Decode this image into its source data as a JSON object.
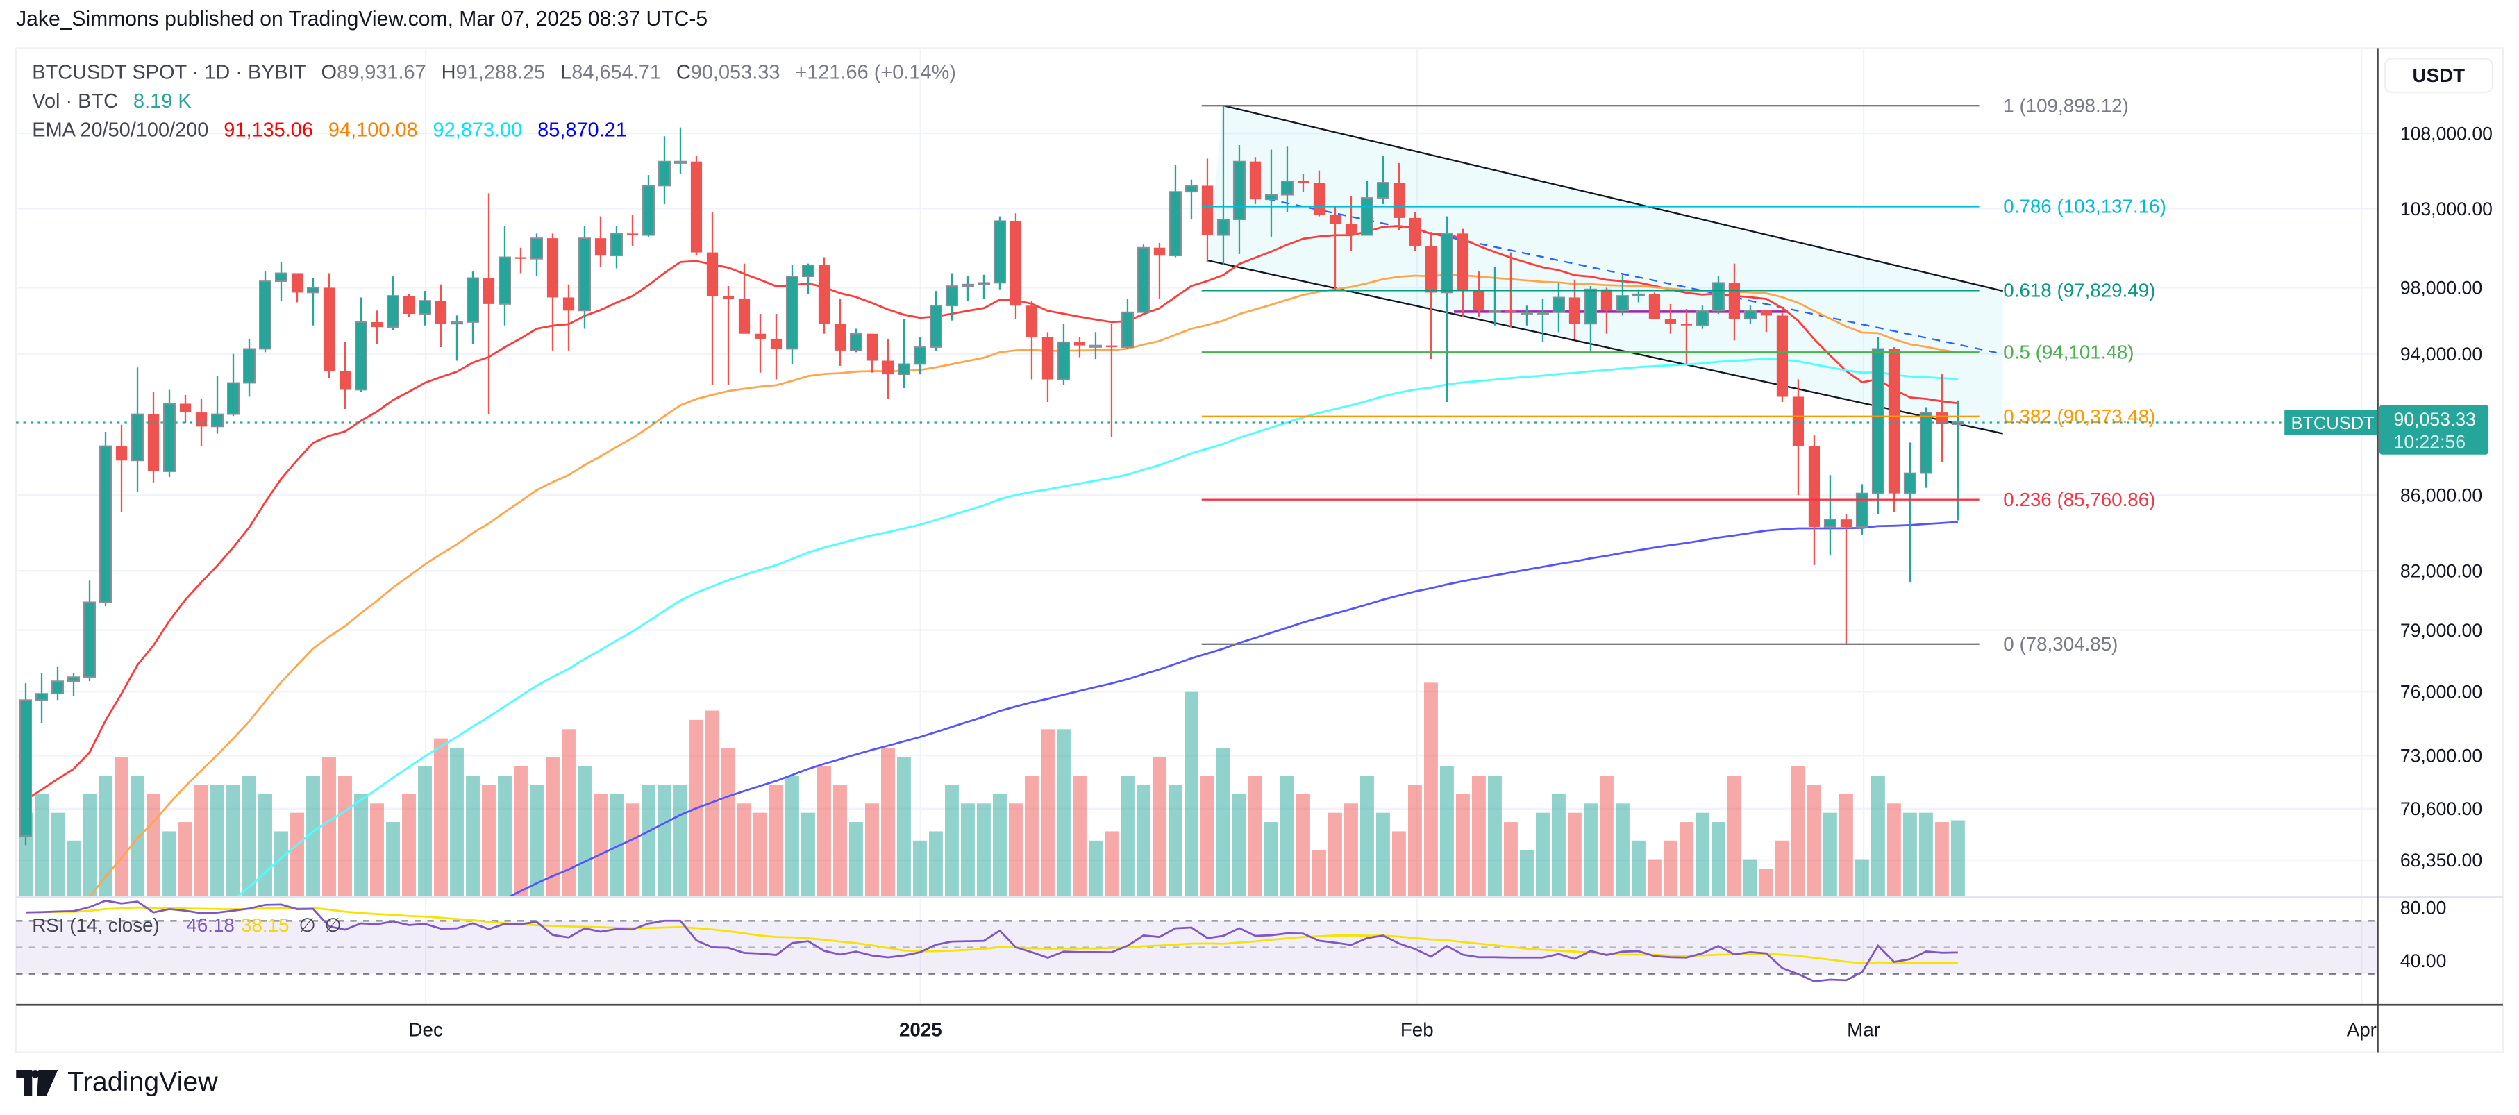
{
  "publish_line": "Jake_Simmons published on TradingView.com, Mar 07, 2025 08:37 UTC-5",
  "legend": {
    "symbol": "BTCUSDT SPOT · 1D · BYBIT",
    "o_label": "O",
    "o": "89,931.67",
    "h_label": "H",
    "h": "91,288.25",
    "l_label": "L",
    "l": "84,654.71",
    "c_label": "C",
    "c": "90,053.33",
    "change": "+121.66 (+0.14%)",
    "vol_label": "Vol · BTC",
    "vol": "8.19 K",
    "ema_label": "EMA 20/50/100/200",
    "ema20": "91,135.06",
    "ema50": "94,100.08",
    "ema100": "92,873.00",
    "ema200": "85,870.21"
  },
  "rsi_legend": {
    "label": "RSI (14, close)",
    "rsi": "46.18",
    "rsi_ma": "38.15",
    "na1": "∅",
    "na2": "∅"
  },
  "price_axis": {
    "currency": "USDT",
    "ticks": [
      "108,000.00",
      "103,000.00",
      "98,000.00",
      "94,000.00",
      "86,000.00",
      "82,000.00",
      "79,000.00",
      "76,000.00",
      "73,000.00",
      "70,600.00",
      "68,350.00"
    ],
    "tick_values": [
      108000,
      103000,
      98000,
      94000,
      86000,
      82000,
      79000,
      76000,
      73000,
      70600,
      68350
    ],
    "last_price": "90,053.33",
    "countdown": "10:22:56",
    "symbol_tag": "BTCUSDT",
    "rsi_ticks": [
      "80.00",
      "40.00"
    ]
  },
  "time_axis": {
    "labels": [
      "Dec",
      "2025",
      "Feb",
      "Mar",
      "Apr"
    ]
  },
  "logo_text": "TradingView",
  "colors": {
    "up": "#26a69a",
    "down": "#ef5350",
    "ema20": "#ff1f1f",
    "ema50": "#ff8c1a",
    "ema100": "#33ffff",
    "ema200": "#2f2fff",
    "rsi": "#7e57c2",
    "rsi_ma": "#ffeb3b"
  },
  "chart_data": {
    "type": "candlestick",
    "title": "BTCUSDT SPOT · 1D · BYBIT",
    "x_start": "2024-11-06",
    "x_end": "2025-03-07",
    "interval": "1D",
    "price_scale": "log",
    "ylim": [
      66000,
      112000
    ],
    "ohlc_k": [
      [
        69.4,
        76.4,
        69.0,
        75.6
      ],
      [
        75.6,
        76.9,
        74.5,
        75.9
      ],
      [
        75.9,
        77.2,
        75.6,
        76.5
      ],
      [
        76.5,
        76.9,
        75.8,
        76.7
      ],
      [
        76.7,
        81.5,
        76.5,
        80.4
      ],
      [
        80.4,
        89.5,
        80.2,
        88.7
      ],
      [
        88.7,
        89.9,
        85.1,
        87.9
      ],
      [
        87.9,
        93.2,
        86.2,
        90.5
      ],
      [
        90.5,
        91.8,
        86.7,
        87.3
      ],
      [
        87.3,
        91.9,
        87.0,
        91.1
      ],
      [
        91.1,
        91.6,
        90.0,
        90.6
      ],
      [
        90.6,
        91.4,
        88.7,
        89.8
      ],
      [
        89.8,
        92.7,
        89.4,
        90.5
      ],
      [
        90.5,
        94.0,
        90.4,
        92.3
      ],
      [
        92.3,
        94.9,
        91.5,
        94.3
      ],
      [
        94.3,
        99.0,
        94.1,
        98.4
      ],
      [
        98.4,
        99.6,
        97.2,
        98.9
      ],
      [
        98.9,
        98.9,
        97.1,
        97.7
      ],
      [
        97.7,
        98.6,
        95.7,
        98.0
      ],
      [
        98.0,
        98.9,
        92.6,
        93.0
      ],
      [
        93.0,
        94.7,
        90.8,
        91.9
      ],
      [
        91.9,
        97.4,
        91.8,
        95.9
      ],
      [
        95.9,
        96.6,
        94.6,
        95.6
      ],
      [
        95.6,
        98.7,
        95.4,
        97.5
      ],
      [
        97.5,
        97.6,
        96.2,
        96.4
      ],
      [
        96.4,
        97.8,
        95.7,
        97.2
      ],
      [
        97.2,
        98.2,
        94.4,
        95.8
      ],
      [
        95.8,
        96.3,
        93.6,
        95.9
      ],
      [
        95.9,
        99.0,
        94.6,
        98.6
      ],
      [
        98.6,
        104.0,
        90.5,
        97.0
      ],
      [
        97.0,
        101.9,
        95.7,
        99.9
      ],
      [
        99.9,
        100.5,
        98.9,
        99.8
      ],
      [
        99.8,
        101.4,
        98.7,
        101.1
      ],
      [
        101.1,
        101.4,
        94.2,
        97.4
      ],
      [
        97.4,
        98.2,
        94.2,
        96.6
      ],
      [
        96.6,
        101.9,
        95.5,
        101.1
      ],
      [
        101.1,
        102.5,
        99.3,
        100.0
      ],
      [
        100.0,
        101.9,
        99.2,
        101.4
      ],
      [
        101.4,
        102.6,
        100.6,
        101.3
      ],
      [
        101.3,
        105.2,
        101.2,
        104.5
      ],
      [
        104.5,
        107.8,
        103.3,
        106.1
      ],
      [
        106.1,
        108.4,
        105.3,
        106.1
      ],
      [
        106.1,
        106.5,
        100.0,
        100.2
      ],
      [
        100.2,
        102.8,
        92.2,
        97.5
      ],
      [
        97.5,
        98.1,
        92.2,
        97.3
      ],
      [
        97.3,
        99.5,
        96.4,
        95.2
      ],
      [
        95.2,
        96.4,
        92.9,
        94.9
      ],
      [
        94.9,
        96.4,
        92.5,
        94.3
      ],
      [
        94.3,
        99.4,
        93.4,
        98.7
      ],
      [
        98.7,
        99.5,
        97.6,
        99.4
      ],
      [
        99.4,
        99.9,
        95.2,
        95.8
      ],
      [
        95.8,
        97.3,
        93.3,
        94.2
      ],
      [
        94.2,
        95.5,
        94.1,
        95.2
      ],
      [
        95.2,
        95.2,
        92.9,
        93.6
      ],
      [
        93.6,
        94.9,
        91.4,
        92.8
      ],
      [
        92.8,
        96.1,
        92.0,
        93.4
      ],
      [
        93.4,
        95.0,
        92.8,
        94.4
      ],
      [
        94.4,
        97.8,
        94.2,
        96.9
      ],
      [
        96.9,
        98.9,
        96.0,
        98.1
      ],
      [
        98.1,
        98.7,
        97.2,
        98.2
      ],
      [
        98.2,
        98.8,
        97.3,
        98.3
      ],
      [
        98.3,
        102.5,
        97.9,
        102.2
      ],
      [
        102.2,
        102.7,
        96.1,
        96.9
      ],
      [
        96.9,
        97.2,
        92.5,
        95.0
      ],
      [
        95.0,
        95.3,
        91.2,
        92.5
      ],
      [
        92.5,
        95.8,
        92.2,
        94.7
      ],
      [
        94.7,
        95.0,
        93.8,
        94.5
      ],
      [
        94.5,
        95.3,
        93.7,
        94.5
      ],
      [
        94.5,
        95.8,
        89.2,
        94.4
      ],
      [
        94.4,
        97.3,
        94.3,
        96.5
      ],
      [
        96.5,
        100.7,
        96.5,
        100.5
      ],
      [
        100.5,
        100.8,
        97.3,
        100.0
      ],
      [
        100.0,
        105.9,
        99.9,
        104.1
      ],
      [
        104.1,
        104.9,
        102.3,
        104.5
      ],
      [
        104.5,
        106.3,
        99.6,
        101.3
      ],
      [
        101.3,
        109.9,
        99.4,
        102.3
      ],
      [
        102.3,
        107.2,
        100.1,
        106.1
      ],
      [
        106.1,
        106.4,
        103.3,
        103.6
      ],
      [
        103.6,
        106.9,
        101.2,
        103.9
      ],
      [
        103.9,
        107.1,
        102.8,
        104.8
      ],
      [
        104.8,
        105.3,
        104.1,
        104.7
      ],
      [
        104.7,
        105.5,
        102.5,
        102.6
      ],
      [
        102.6,
        103.2,
        97.8,
        102.0
      ],
      [
        102.0,
        103.8,
        100.3,
        101.3
      ],
      [
        101.3,
        104.8,
        101.3,
        103.7
      ],
      [
        103.7,
        106.5,
        103.3,
        104.7
      ],
      [
        104.7,
        106.0,
        101.6,
        102.4
      ],
      [
        102.4,
        102.8,
        100.3,
        100.6
      ],
      [
        100.6,
        101.5,
        93.7,
        97.7
      ],
      [
        97.7,
        102.5,
        91.2,
        101.4
      ],
      [
        101.4,
        101.7,
        96.2,
        97.8
      ],
      [
        97.8,
        99.0,
        96.2,
        96.6
      ],
      [
        96.6,
        99.3,
        95.7,
        96.6
      ],
      [
        96.6,
        100.2,
        95.6,
        96.5
      ],
      [
        96.5,
        96.9,
        95.7,
        96.5
      ],
      [
        96.5,
        97.3,
        94.7,
        96.5
      ],
      [
        96.5,
        98.3,
        95.3,
        97.4
      ],
      [
        97.4,
        98.5,
        94.9,
        95.8
      ],
      [
        95.8,
        98.1,
        94.1,
        97.9
      ],
      [
        97.9,
        98.0,
        95.2,
        96.6
      ],
      [
        96.6,
        98.8,
        96.3,
        97.5
      ],
      [
        97.5,
        97.9,
        97.1,
        97.6
      ],
      [
        97.6,
        97.7,
        96.2,
        96.1
      ],
      [
        96.1,
        97.0,
        95.2,
        95.8
      ],
      [
        95.8,
        96.7,
        93.4,
        95.7
      ],
      [
        95.7,
        96.9,
        95.5,
        96.6
      ],
      [
        96.6,
        98.7,
        96.4,
        98.3
      ],
      [
        98.3,
        99.5,
        94.8,
        96.1
      ],
      [
        96.1,
        96.9,
        95.8,
        96.6
      ],
      [
        96.6,
        96.6,
        95.3,
        96.3
      ],
      [
        96.3,
        96.5,
        91.2,
        91.5
      ],
      [
        91.5,
        92.5,
        86.0,
        88.7
      ],
      [
        88.7,
        89.3,
        82.3,
        84.3
      ],
      [
        84.3,
        87.1,
        82.8,
        84.7
      ],
      [
        84.7,
        85.0,
        78.3,
        84.3
      ],
      [
        84.3,
        86.6,
        83.9,
        86.1
      ],
      [
        86.1,
        95.0,
        85.0,
        94.3
      ],
      [
        94.3,
        94.4,
        85.1,
        86.1
      ],
      [
        86.1,
        88.9,
        81.4,
        87.2
      ],
      [
        87.2,
        90.9,
        86.4,
        90.6
      ],
      [
        90.6,
        92.8,
        87.8,
        89.93
      ],
      [
        89.93,
        91.29,
        84.65,
        90.05
      ]
    ],
    "volume_k": [
      9,
      11,
      9,
      6,
      11,
      13,
      15,
      13,
      11,
      7,
      8,
      12,
      12,
      12,
      13,
      11,
      7,
      9,
      13,
      15,
      13,
      11,
      10,
      8,
      11,
      14,
      17,
      16,
      13,
      12,
      13,
      14,
      12,
      15,
      18,
      14,
      11,
      11,
      10,
      12,
      12,
      12,
      19,
      20,
      16,
      10,
      9,
      12,
      13,
      9,
      14,
      12,
      8,
      10,
      16,
      15,
      6,
      7,
      12,
      10,
      10,
      11,
      10,
      13,
      18,
      18,
      13,
      6,
      7,
      13,
      12,
      15,
      12,
      22,
      13,
      16,
      11,
      13,
      8,
      13,
      11,
      5,
      9,
      10,
      13,
      9,
      7,
      12,
      23,
      14,
      11,
      13,
      13,
      8,
      5,
      9,
      11,
      9,
      10,
      13,
      10,
      6,
      4,
      6,
      8,
      9,
      8,
      13,
      4,
      3,
      6,
      14,
      12,
      9,
      11,
      4,
      13,
      10,
      9,
      9,
      8,
      8.19
    ],
    "ema_seed_k": {
      "ema20": 70.5,
      "ema50": 64.5,
      "ema100": 60.5,
      "ema200": 57.5
    },
    "rsi_seed": {
      "avg_gain_k": 1.3,
      "avg_loss_k": 0.55
    },
    "fib_levels": [
      {
        "ratio": 1,
        "price": 109898.12,
        "label": "1 (109,898.12)",
        "color": "#787b86"
      },
      {
        "ratio": 0.786,
        "price": 103137.16,
        "label": "0.786 (103,137.16)",
        "color": "#00bcd4"
      },
      {
        "ratio": 0.618,
        "price": 97829.49,
        "label": "0.618 (97,829.49)",
        "color": "#089981"
      },
      {
        "ratio": 0.5,
        "price": 94101.48,
        "label": "0.5 (94,101.48)",
        "color": "#4caf50"
      },
      {
        "ratio": 0.382,
        "price": 90373.48,
        "label": "0.382 (90,373.48)",
        "color": "#ff9800"
      },
      {
        "ratio": 0.236,
        "price": 85760.86,
        "label": "0.236 (85,760.86)",
        "color": "#f23645"
      },
      {
        "ratio": 0,
        "price": 78304.85,
        "label": "0 (78,304.85)",
        "color": "#787b86"
      }
    ],
    "channel": {
      "upper": [
        [
          "2025-01-20",
          109900
        ],
        [
          "2025-03-07",
          97800
        ]
      ],
      "lower": [
        [
          "2025-01-19",
          99700
        ],
        [
          "2025-03-07",
          89400
        ]
      ]
    },
    "rsi_levels": [
      70,
      50,
      30
    ]
  }
}
